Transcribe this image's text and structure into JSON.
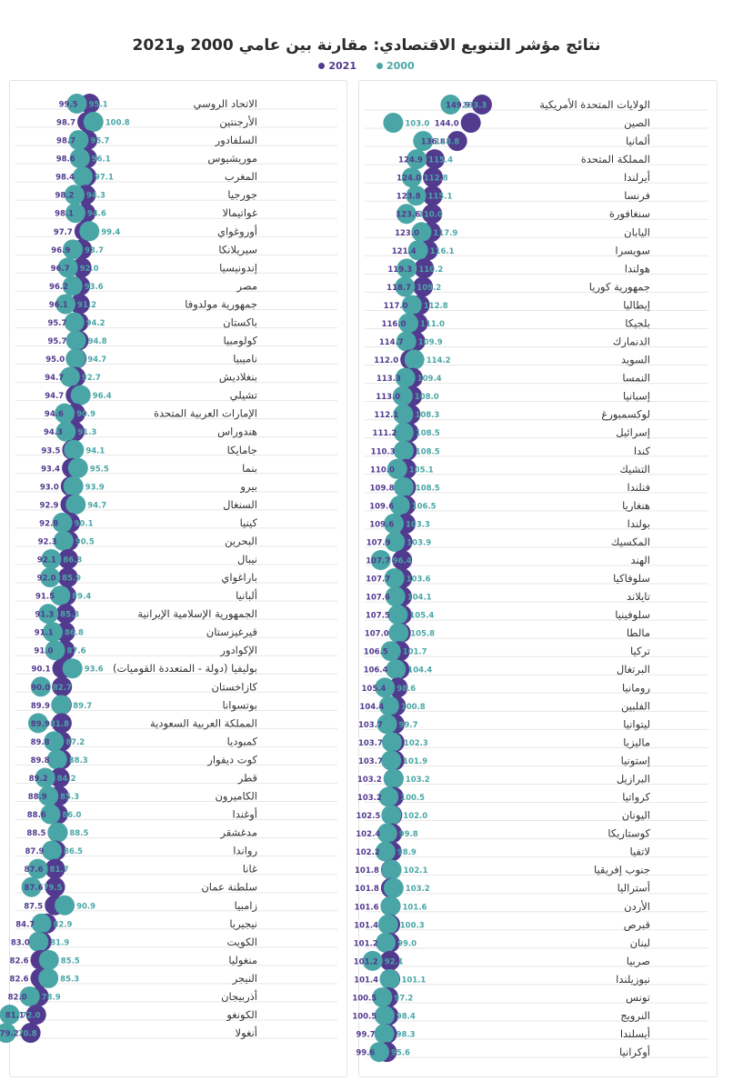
{
  "title": "نتائج مؤشر التنويع الاقتصادي: مقارنة بين عامي 2000 و2021",
  "legend": {
    "series_2000": "2000",
    "series_2021": "2021"
  },
  "colors": {
    "series_2000": "#4aa6a6",
    "series_2021": "#523a8f",
    "grid": "#e7e7e7",
    "label": "#333333"
  },
  "chart_data": [
    {
      "type": "scatter",
      "x_axis_label": "",
      "series_names": [
        "2000",
        "2021"
      ],
      "rows": [
        {
          "country": "الاتحاد الروسي",
          "v2000": 95.1,
          "v2021": 99.5
        },
        {
          "country": "الأرجنتين",
          "v2000": 100.8,
          "v2021": 98.7
        },
        {
          "country": "السلفادور",
          "v2000": 95.7,
          "v2021": 98.7
        },
        {
          "country": "موريشيوس",
          "v2000": 96.1,
          "v2021": 98.6
        },
        {
          "country": "المغرب",
          "v2000": 97.1,
          "v2021": 98.4
        },
        {
          "country": "جورجيا",
          "v2000": 94.3,
          "v2021": 98.2
        },
        {
          "country": "غواتيمالا",
          "v2000": 94.6,
          "v2021": 98.1
        },
        {
          "country": "أوروغواي",
          "v2000": 99.4,
          "v2021": 97.7
        },
        {
          "country": "سيريلانكا",
          "v2000": 93.7,
          "v2021": 96.9
        },
        {
          "country": "إندونيسيا",
          "v2000": 92.0,
          "v2021": 96.7
        },
        {
          "country": "مصر",
          "v2000": 93.6,
          "v2021": 96.2
        },
        {
          "country": "جمهورية مولدوفا",
          "v2000": 91.2,
          "v2021": 96.1
        },
        {
          "country": "باكستان",
          "v2000": 94.2,
          "v2021": 95.7
        },
        {
          "country": "كولومبيا",
          "v2000": 94.8,
          "v2021": 95.7
        },
        {
          "country": "ناميبيا",
          "v2000": 94.7,
          "v2021": 95.0
        },
        {
          "country": "بنغلاديش",
          "v2000": 92.7,
          "v2021": 94.7
        },
        {
          "country": "تشيلي",
          "v2000": 96.4,
          "v2021": 94.7
        },
        {
          "country": "الإمارات العربية المتحدة",
          "v2000": 90.9,
          "v2021": 94.6
        },
        {
          "country": "هندوراس",
          "v2000": 91.3,
          "v2021": 94.3
        },
        {
          "country": "جامايكا",
          "v2000": 94.1,
          "v2021": 93.5
        },
        {
          "country": "بنما",
          "v2000": 95.5,
          "v2021": 93.4
        },
        {
          "country": "بيرو",
          "v2000": 93.9,
          "v2021": 93.0
        },
        {
          "country": "السنغال",
          "v2000": 94.7,
          "v2021": 92.9
        },
        {
          "country": "كينيا",
          "v2000": 90.1,
          "v2021": 92.8
        },
        {
          "country": "البحرين",
          "v2000": 90.5,
          "v2021": 92.3
        },
        {
          "country": "نيبال",
          "v2000": 86.3,
          "v2021": 92.1
        },
        {
          "country": "باراغواي",
          "v2000": 85.9,
          "v2021": 92.0
        },
        {
          "country": "ألبانيا",
          "v2000": 89.4,
          "v2021": 91.5
        },
        {
          "country": "الجمهورية الإسلامية الإيرانية",
          "v2000": 85.3,
          "v2021": 91.3
        },
        {
          "country": "قيرغيزستان",
          "v2000": 86.8,
          "v2021": 91.1
        },
        {
          "country": "الإكوادور",
          "v2000": 87.6,
          "v2021": 91.0
        },
        {
          "country": "بوليفيا (دولة - المتعددة القوميات)",
          "v2000": 93.6,
          "v2021": 90.1
        },
        {
          "country": "كازاخستان",
          "v2000": 82.7,
          "v2021": 90.0
        },
        {
          "country": "بوتسوانا",
          "v2000": 89.7,
          "v2021": 89.9
        },
        {
          "country": "المملكة العربية السعودية",
          "v2000": 81.8,
          "v2021": 89.9
        },
        {
          "country": "كمبوديا",
          "v2000": 87.2,
          "v2021": 89.8
        },
        {
          "country": "كوت ديفوار",
          "v2000": 88.3,
          "v2021": 89.8
        },
        {
          "country": "قطر",
          "v2000": 84.2,
          "v2021": 89.2
        },
        {
          "country": "الكاميرون",
          "v2000": 85.3,
          "v2021": 88.9
        },
        {
          "country": "أوغندا",
          "v2000": 86.0,
          "v2021": 88.6
        },
        {
          "country": "مدغشقر",
          "v2000": 88.5,
          "v2021": 88.5
        },
        {
          "country": "رواندا",
          "v2000": 86.5,
          "v2021": 87.9
        },
        {
          "country": "غانا",
          "v2000": 81.7,
          "v2021": 87.6
        },
        {
          "country": "سلطنة عمان",
          "v2000": 79.5,
          "v2021": 87.6
        },
        {
          "country": "زامبيا",
          "v2000": 90.9,
          "v2021": 87.5
        },
        {
          "country": "نيجيريا",
          "v2000": 82.9,
          "v2021": 84.7
        },
        {
          "country": "الكويت",
          "v2000": 81.9,
          "v2021": 83.0
        },
        {
          "country": "منغوليا",
          "v2000": 85.5,
          "v2021": 82.6
        },
        {
          "country": "النيجر",
          "v2000": 85.3,
          "v2021": 82.6
        },
        {
          "country": "أذربيجان",
          "v2000": 78.9,
          "v2021": 82.0
        },
        {
          "country": "الكونغو",
          "v2000": 72.0,
          "v2021": 81.1
        },
        {
          "country": "أنغولا",
          "v2000": 70.8,
          "v2021": 79.2
        }
      ]
    },
    {
      "type": "scatter",
      "x_axis_label": "",
      "series_names": [
        "2000",
        "2021"
      ],
      "rows": [
        {
          "country": "الولايات المتحدة الأمريكية",
          "v2000": 133.3,
          "v2021": 149.9
        },
        {
          "country": "الصين",
          "v2000": 103.0,
          "v2021": 144.0
        },
        {
          "country": "ألمانيا",
          "v2000": 118.8,
          "v2021": 136.8
        },
        {
          "country": "المملكة المتحدة",
          "v2000": 115.4,
          "v2021": 124.9
        },
        {
          "country": "أيرلندا",
          "v2000": 112.8,
          "v2021": 124.0
        },
        {
          "country": "فرنسا",
          "v2000": 115.1,
          "v2021": 123.8
        },
        {
          "country": "سنغافورة",
          "v2000": 110.0,
          "v2021": 123.6
        },
        {
          "country": "اليابان",
          "v2000": 117.9,
          "v2021": 123.0
        },
        {
          "country": "سويسرا",
          "v2000": 116.1,
          "v2021": 121.4
        },
        {
          "country": "هولندا",
          "v2000": 110.2,
          "v2021": 119.3
        },
        {
          "country": "جمهورية كوريا",
          "v2000": 109.2,
          "v2021": 118.7
        },
        {
          "country": "إيطاليا",
          "v2000": 112.8,
          "v2021": 117.0
        },
        {
          "country": "بلجيكا",
          "v2000": 111.0,
          "v2021": 116.0
        },
        {
          "country": "الدنمارك",
          "v2000": 109.9,
          "v2021": 114.7
        },
        {
          "country": "السويد",
          "v2000": 114.2,
          "v2021": 112.0
        },
        {
          "country": "النمسا",
          "v2000": 109.4,
          "v2021": 113.3
        },
        {
          "country": "إسبانيا",
          "v2000": 108.0,
          "v2021": 113.0
        },
        {
          "country": "لوكسمبورغ",
          "v2000": 108.3,
          "v2021": 112.1
        },
        {
          "country": "إسرائيل",
          "v2000": 108.5,
          "v2021": 111.2
        },
        {
          "country": "كندا",
          "v2000": 108.5,
          "v2021": 110.3
        },
        {
          "country": "التشيك",
          "v2000": 105.1,
          "v2021": 110.0
        },
        {
          "country": "فنلندا",
          "v2000": 108.5,
          "v2021": 109.8
        },
        {
          "country": "هنغاريا",
          "v2000": 106.5,
          "v2021": 109.6
        },
        {
          "country": "بولندا",
          "v2000": 103.3,
          "v2021": 109.6
        },
        {
          "country": "المكسيك",
          "v2000": 103.9,
          "v2021": 107.9
        },
        {
          "country": "الهند",
          "v2000": 96.4,
          "v2021": 107.7
        },
        {
          "country": "سلوفاكيا",
          "v2000": 103.6,
          "v2021": 107.7
        },
        {
          "country": "تايلاند",
          "v2000": 104.1,
          "v2021": 107.6
        },
        {
          "country": "سلوفينيا",
          "v2000": 105.4,
          "v2021": 107.5
        },
        {
          "country": "مالطا",
          "v2000": 105.8,
          "v2021": 107.0
        },
        {
          "country": "تركيا",
          "v2000": 101.7,
          "v2021": 106.5
        },
        {
          "country": "البرتغال",
          "v2000": 104.4,
          "v2021": 106.4
        },
        {
          "country": "رومانيا",
          "v2000": 98.6,
          "v2021": 105.4
        },
        {
          "country": "الفلبين",
          "v2000": 100.8,
          "v2021": 104.4
        },
        {
          "country": "ليتوانيا",
          "v2000": 99.7,
          "v2021": 103.7
        },
        {
          "country": "ماليزيا",
          "v2000": 102.3,
          "v2021": 103.7
        },
        {
          "country": "إستونيا",
          "v2000": 101.9,
          "v2021": 103.7
        },
        {
          "country": "البرازيل",
          "v2000": 103.2,
          "v2021": 103.2
        },
        {
          "country": "كرواتيا",
          "v2000": 100.5,
          "v2021": 103.2
        },
        {
          "country": "اليونان",
          "v2000": 102.0,
          "v2021": 102.5
        },
        {
          "country": "كوستاريكا",
          "v2000": 99.8,
          "v2021": 102.4
        },
        {
          "country": "لاتفيا",
          "v2000": 98.9,
          "v2021": 102.2
        },
        {
          "country": "جنوب إفريقيا",
          "v2000": 102.1,
          "v2021": 101.8
        },
        {
          "country": "أستراليا",
          "v2000": 103.2,
          "v2021": 101.8
        },
        {
          "country": "الأردن",
          "v2000": 101.6,
          "v2021": 101.6
        },
        {
          "country": "قبرص",
          "v2000": 100.3,
          "v2021": 101.4
        },
        {
          "country": "لبنان",
          "v2000": 99.0,
          "v2021": 101.2
        },
        {
          "country": "صربيا",
          "v2000": 92.1,
          "v2021": 101.2
        },
        {
          "country": "نيوزيلندا",
          "v2000": 101.1,
          "v2021": 101.4
        },
        {
          "country": "تونس",
          "v2000": 97.2,
          "v2021": 100.5
        },
        {
          "country": "النرويج",
          "v2000": 98.4,
          "v2021": 100.5
        },
        {
          "country": "أيسلندا",
          "v2000": 98.3,
          "v2021": 99.7
        },
        {
          "country": "أوكرانيا",
          "v2000": 95.6,
          "v2021": 99.6
        }
      ]
    }
  ]
}
